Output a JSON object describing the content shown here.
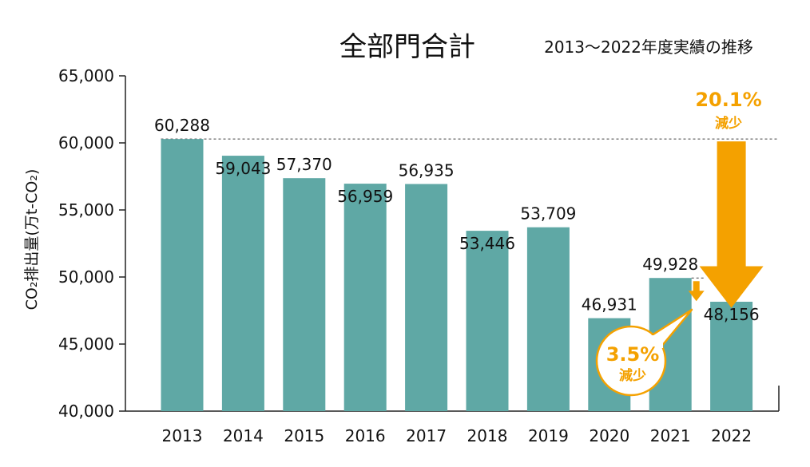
{
  "title": "全部門合計",
  "subtitle": "2013〜2022年度実績の推移",
  "chart_data": {
    "type": "bar",
    "categories": [
      "2013",
      "2014",
      "2015",
      "2016",
      "2017",
      "2018",
      "2019",
      "2020",
      "2021",
      "2022"
    ],
    "values": [
      60288,
      59043,
      57370,
      56959,
      56935,
      53446,
      53709,
      46931,
      49928,
      48156
    ],
    "value_labels": [
      "60,288",
      "59,043",
      "57,370",
      "56,959",
      "56,935",
      "53,446",
      "53,709",
      "46,931",
      "49,928",
      "48,156"
    ],
    "ylabel": "CO₂排出量(万t-CO₂)",
    "ylim": [
      40000,
      65000
    ],
    "yticks": [
      40000,
      45000,
      50000,
      55000,
      60000,
      65000
    ],
    "ytick_labels": [
      "40,000",
      "45,000",
      "50,000",
      "55,000",
      "60,000",
      "65,000"
    ],
    "grid": false,
    "annotations": {
      "big_percent": "20.1%",
      "big_caption": "減少",
      "small_percent": "3.5%",
      "small_caption": "減少"
    }
  },
  "colors": {
    "bar": "#5fa8a5",
    "accent": "#f4a100",
    "text": "#111111"
  }
}
